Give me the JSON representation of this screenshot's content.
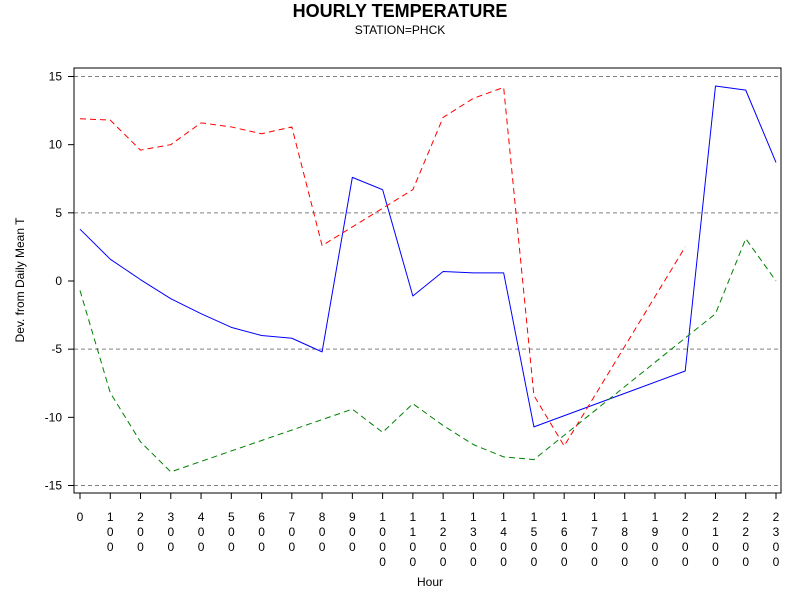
{
  "chart_data": {
    "type": "line",
    "title": "HOURLY TEMPERATURE",
    "subtitle": "STATION=PHCK",
    "xlabel": "Hour",
    "ylabel": "Dev. from Daily Mean T",
    "xlim": [
      0,
      2300
    ],
    "ylim": [
      -15,
      15
    ],
    "x_ticks": [
      0,
      100,
      200,
      300,
      400,
      500,
      600,
      700,
      800,
      900,
      1000,
      1100,
      1200,
      1300,
      1400,
      1500,
      1600,
      1700,
      1800,
      1900,
      2000,
      2100,
      2200,
      2300
    ],
    "y_ticks": [
      -15,
      -10,
      -5,
      0,
      5,
      10,
      15
    ],
    "reference_lines_y": [
      -15,
      -5,
      5,
      15
    ],
    "grid": false,
    "series": [
      {
        "color": "#0000ff",
        "style": "solid",
        "points": [
          [
            0,
            3.8
          ],
          [
            100,
            1.6
          ],
          [
            200,
            0.1
          ],
          [
            300,
            -1.3
          ],
          [
            400,
            -2.4
          ],
          [
            500,
            -3.4
          ],
          [
            600,
            -4.0
          ],
          [
            700,
            -4.2
          ],
          [
            800,
            -5.2
          ],
          [
            900,
            7.6
          ],
          [
            1000,
            6.7
          ],
          [
            1100,
            -1.1
          ],
          [
            1200,
            0.7
          ],
          [
            1300,
            0.6
          ],
          [
            1400,
            0.6
          ],
          [
            1500,
            -10.7
          ],
          [
            2000,
            -6.6
          ],
          [
            2100,
            14.3
          ],
          [
            2200,
            14.0
          ],
          [
            2300,
            8.7
          ]
        ]
      },
      {
        "color": "#ff0000",
        "style": "dashed",
        "points": [
          [
            0,
            11.9
          ],
          [
            100,
            11.8
          ],
          [
            200,
            9.6
          ],
          [
            300,
            10.0
          ],
          [
            400,
            11.6
          ],
          [
            500,
            11.3
          ],
          [
            600,
            10.8
          ],
          [
            700,
            11.3
          ],
          [
            800,
            2.6
          ],
          [
            1100,
            6.7
          ],
          [
            1200,
            12.0
          ],
          [
            1300,
            13.4
          ],
          [
            1400,
            14.2
          ],
          [
            1500,
            -8.4
          ],
          [
            1600,
            -12.1
          ],
          [
            2000,
            2.5
          ]
        ]
      },
      {
        "color": "#008000",
        "style": "dashed",
        "points": [
          [
            0,
            -0.7
          ],
          [
            100,
            -8.2
          ],
          [
            200,
            -11.8
          ],
          [
            300,
            -14.0
          ],
          [
            900,
            -9.4
          ],
          [
            1000,
            -11.1
          ],
          [
            1100,
            -9.0
          ],
          [
            1200,
            -10.6
          ],
          [
            1300,
            -12.0
          ],
          [
            1400,
            -12.9
          ],
          [
            1500,
            -13.1
          ],
          [
            2100,
            -2.4
          ],
          [
            2200,
            3.1
          ],
          [
            2300,
            0.0
          ]
        ]
      }
    ]
  }
}
